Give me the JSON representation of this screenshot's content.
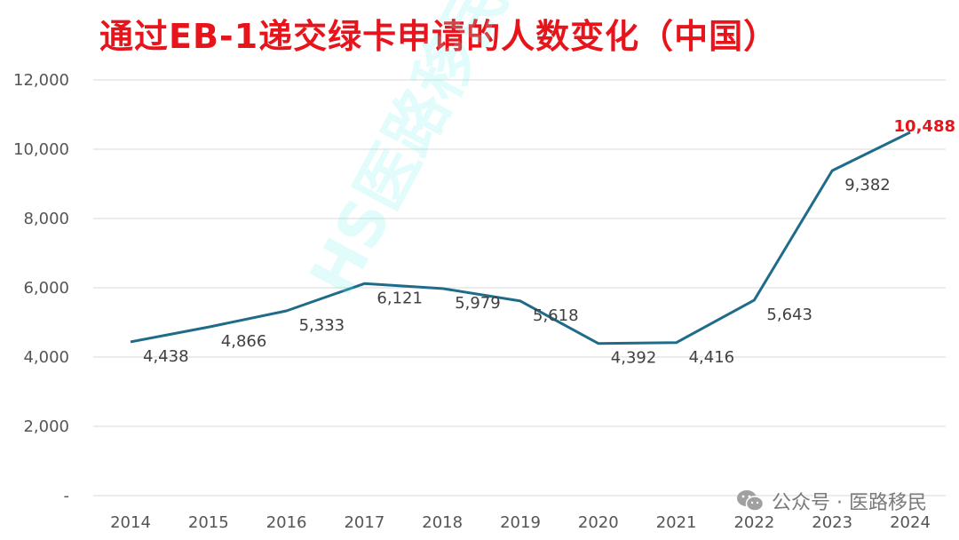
{
  "title": "通过EB-1递交绿卡申请的人数变化（中国）",
  "watermark": "HS医路移民",
  "source": "公众号 · 医路移民",
  "colors": {
    "line": "#1f6b8a",
    "title": "#e8141b",
    "highlight": "#e8141b",
    "grid": "#d9d9d9"
  },
  "icons": {
    "source": "wechat-icon"
  },
  "chart_data": {
    "type": "line",
    "categories": [
      "2014",
      "2015",
      "2016",
      "2017",
      "2018",
      "2019",
      "2020",
      "2021",
      "2022",
      "2023",
      "2024"
    ],
    "values": [
      4438,
      4866,
      5333,
      6121,
      5979,
      5618,
      4392,
      4416,
      5643,
      9382,
      10488
    ],
    "value_labels": [
      "4,438",
      "4,866",
      "5,333",
      "6,121",
      "5,979",
      "5,618",
      "4,392",
      "4,416",
      "5,643",
      "9,382",
      "10,488"
    ],
    "highlight_index": 10,
    "ylim": [
      0,
      12000
    ],
    "yticks": [
      0,
      2000,
      4000,
      6000,
      8000,
      10000,
      12000
    ],
    "ytick_labels": [
      "-",
      "2,000",
      "4,000",
      "6,000",
      "8,000",
      "10,000",
      "12,000"
    ],
    "grid": true,
    "legend": false
  }
}
